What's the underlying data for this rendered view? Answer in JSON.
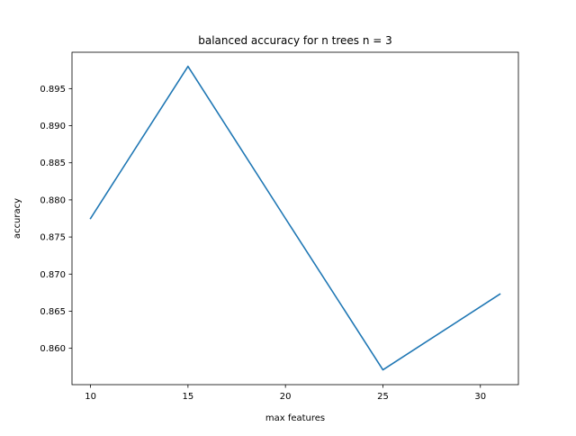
{
  "chart_data": {
    "type": "line",
    "title": "balanced accuracy for n trees n = 3",
    "xlabel": "max features",
    "ylabel": "accuracy",
    "x": [
      10,
      15,
      20,
      25,
      31
    ],
    "series": [
      {
        "values": [
          0.8775,
          0.898,
          0.8775,
          0.8571,
          0.8673
        ],
        "color": "#1f77b4"
      }
    ],
    "xlim": [
      9.05,
      31.95
    ],
    "ylim": [
      0.8551,
      0.8999
    ],
    "xticks": [
      10,
      15,
      20,
      25,
      30
    ],
    "xtick_labels": [
      "10",
      "15",
      "20",
      "25",
      "30"
    ],
    "yticks": [
      0.86,
      0.865,
      0.87,
      0.875,
      0.88,
      0.885,
      0.89,
      0.895
    ],
    "ytick_labels": [
      "0.860",
      "0.865",
      "0.870",
      "0.875",
      "0.880",
      "0.885",
      "0.890",
      "0.895"
    ],
    "grid": false,
    "legend": "none"
  }
}
